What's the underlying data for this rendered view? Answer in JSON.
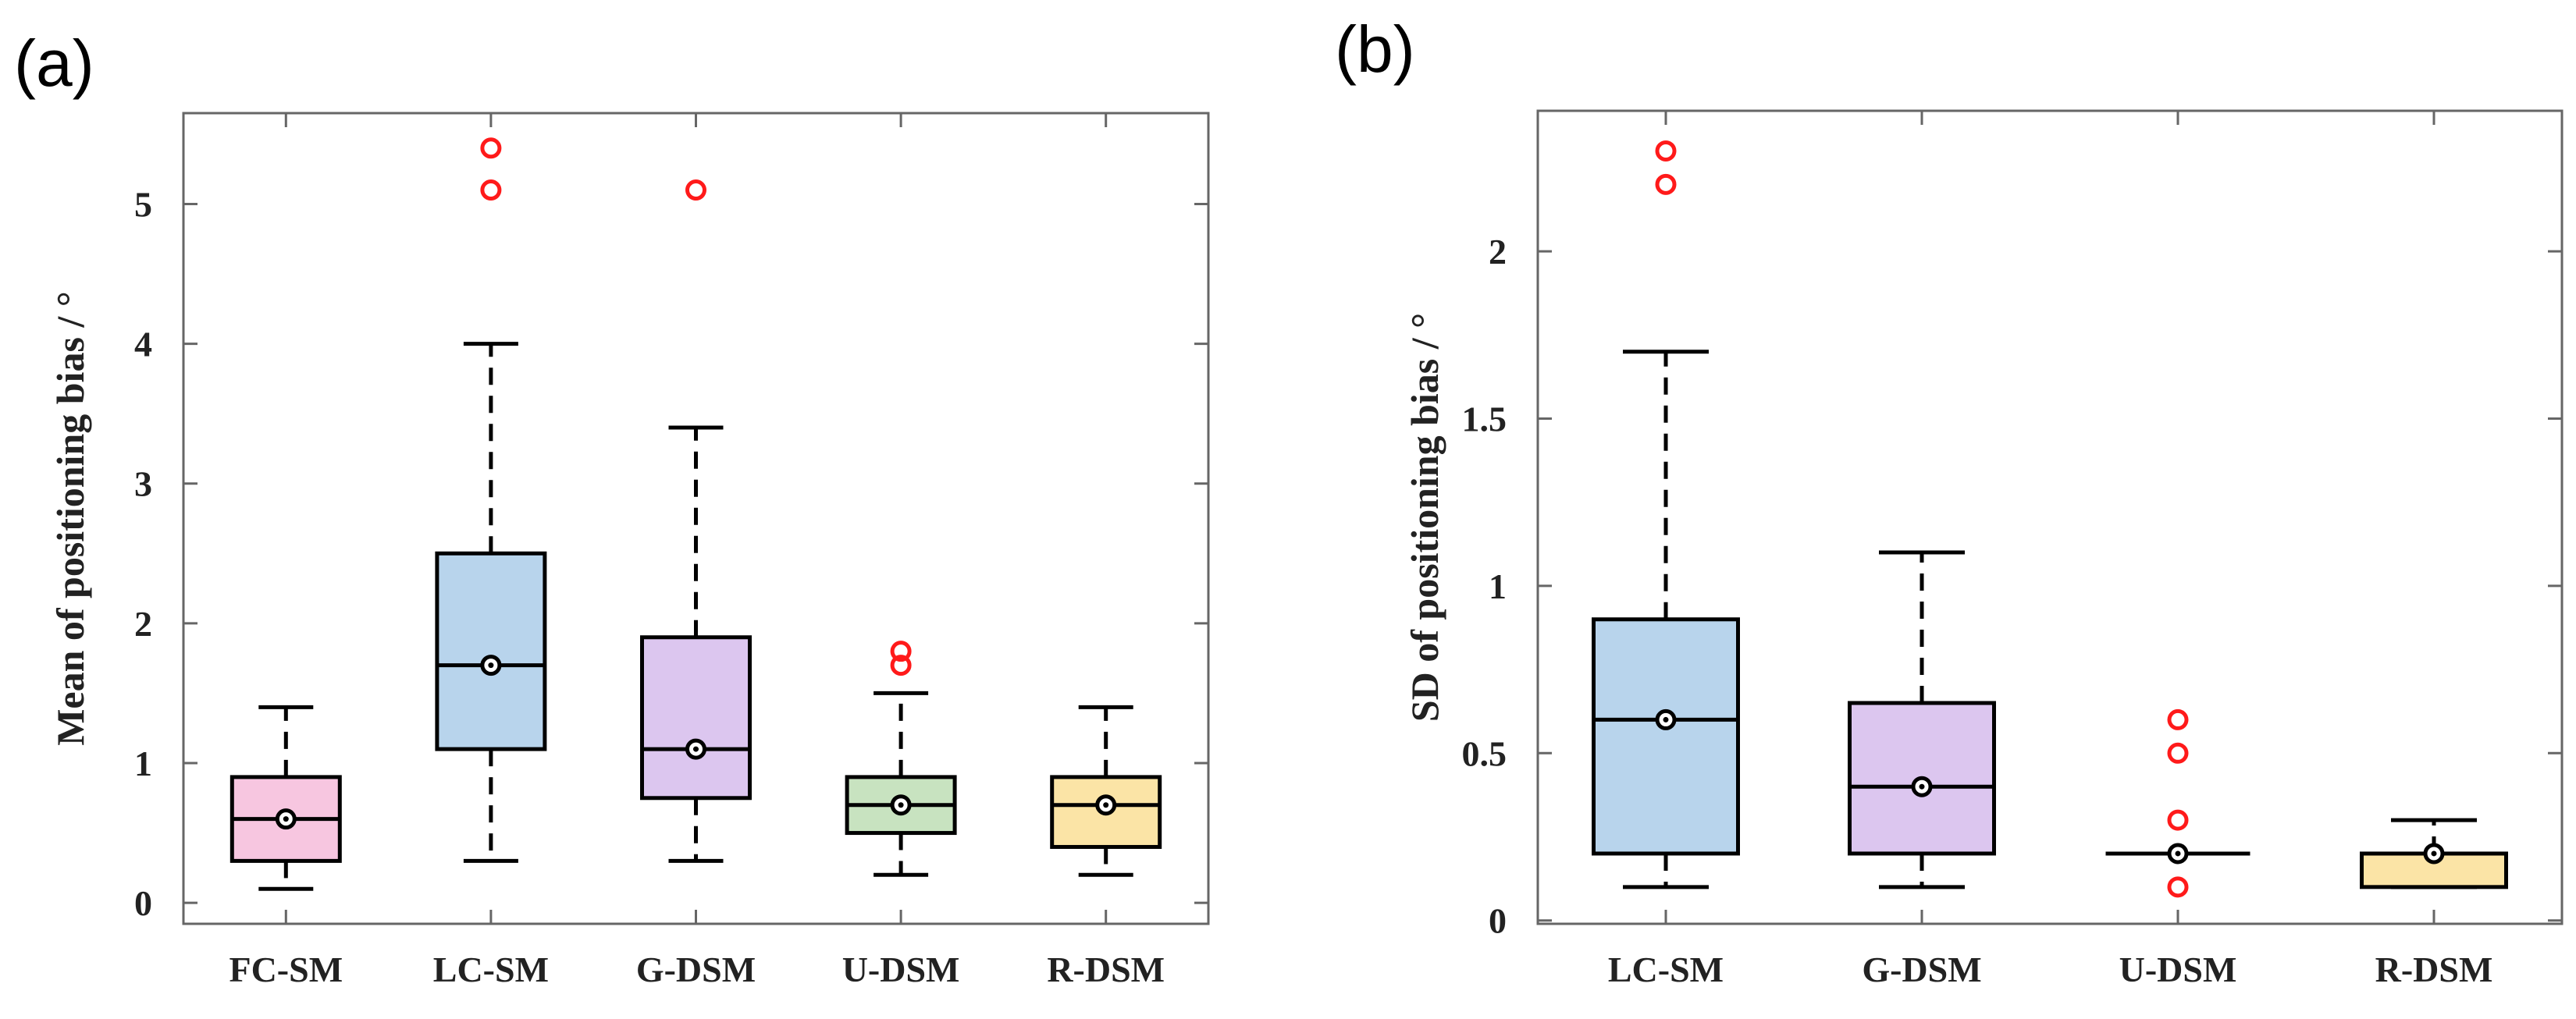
{
  "colors": {
    "FC-SM": "#f7c6e0",
    "LC-SM": "#b8d4ec",
    "G-DSM": "#dcc6ef",
    "U-DSM": "#c8e3c0",
    "R-DSM": "#fbe4a6",
    "outlier": "#ff1a1a",
    "axis": "#666666",
    "box_edge": "#000000"
  },
  "chart_data": [
    {
      "id": "a",
      "panel_label": "(a)",
      "type": "box",
      "ylabel": "Mean of positioning bias / °",
      "xlabel": "",
      "ylim": [
        -0.15,
        5.65
      ],
      "yticks": [
        0,
        1,
        2,
        3,
        4,
        5
      ],
      "ytick_labels": [
        "0",
        "1",
        "2",
        "3",
        "4",
        "5"
      ],
      "categories": [
        "FC-SM",
        "LC-SM",
        "G-DSM",
        "U-DSM",
        "R-DSM"
      ],
      "boxes": [
        {
          "name": "FC-SM",
          "whisker_low": 0.1,
          "q1": 0.3,
          "median": 0.6,
          "mean": 0.6,
          "q3": 0.9,
          "whisker_high": 1.4,
          "outliers": []
        },
        {
          "name": "LC-SM",
          "whisker_low": 0.3,
          "q1": 1.1,
          "median": 1.7,
          "mean": 1.7,
          "q3": 2.5,
          "whisker_high": 4.0,
          "outliers": [
            5.1,
            5.4
          ]
        },
        {
          "name": "G-DSM",
          "whisker_low": 0.3,
          "q1": 0.75,
          "median": 1.1,
          "mean": 1.1,
          "q3": 1.9,
          "whisker_high": 3.4,
          "outliers": [
            5.1
          ]
        },
        {
          "name": "U-DSM",
          "whisker_low": 0.2,
          "q1": 0.5,
          "median": 0.7,
          "mean": 0.7,
          "q3": 0.9,
          "whisker_high": 1.5,
          "outliers": [
            1.7,
            1.8
          ]
        },
        {
          "name": "R-DSM",
          "whisker_low": 0.2,
          "q1": 0.4,
          "median": 0.7,
          "mean": 0.7,
          "q3": 0.9,
          "whisker_high": 1.4,
          "outliers": []
        }
      ]
    },
    {
      "id": "b",
      "panel_label": "(b)",
      "type": "box",
      "ylabel": "SD of positioning bias / °",
      "xlabel": "",
      "ylim": [
        -0.01,
        2.42
      ],
      "yticks": [
        0,
        0.5,
        1,
        1.5,
        2
      ],
      "ytick_labels": [
        "0",
        "0.5",
        "1",
        "1.5",
        "2"
      ],
      "categories": [
        "LC-SM",
        "G-DSM",
        "U-DSM",
        "R-DSM"
      ],
      "boxes": [
        {
          "name": "LC-SM",
          "whisker_low": 0.1,
          "q1": 0.2,
          "median": 0.6,
          "mean": 0.6,
          "q3": 0.9,
          "whisker_high": 1.7,
          "outliers": [
            2.2,
            2.3
          ]
        },
        {
          "name": "G-DSM",
          "whisker_low": 0.1,
          "q1": 0.2,
          "median": 0.4,
          "mean": 0.4,
          "q3": 0.65,
          "whisker_high": 1.1,
          "outliers": []
        },
        {
          "name": "U-DSM",
          "whisker_low": 0.2,
          "q1": 0.2,
          "median": 0.2,
          "mean": 0.2,
          "q3": 0.2,
          "whisker_high": 0.2,
          "outliers": [
            0.1,
            0.3,
            0.5,
            0.6
          ]
        },
        {
          "name": "R-DSM",
          "whisker_low": 0.1,
          "q1": 0.1,
          "median": 0.2,
          "mean": 0.2,
          "q3": 0.2,
          "whisker_high": 0.3,
          "outliers": []
        }
      ]
    }
  ]
}
